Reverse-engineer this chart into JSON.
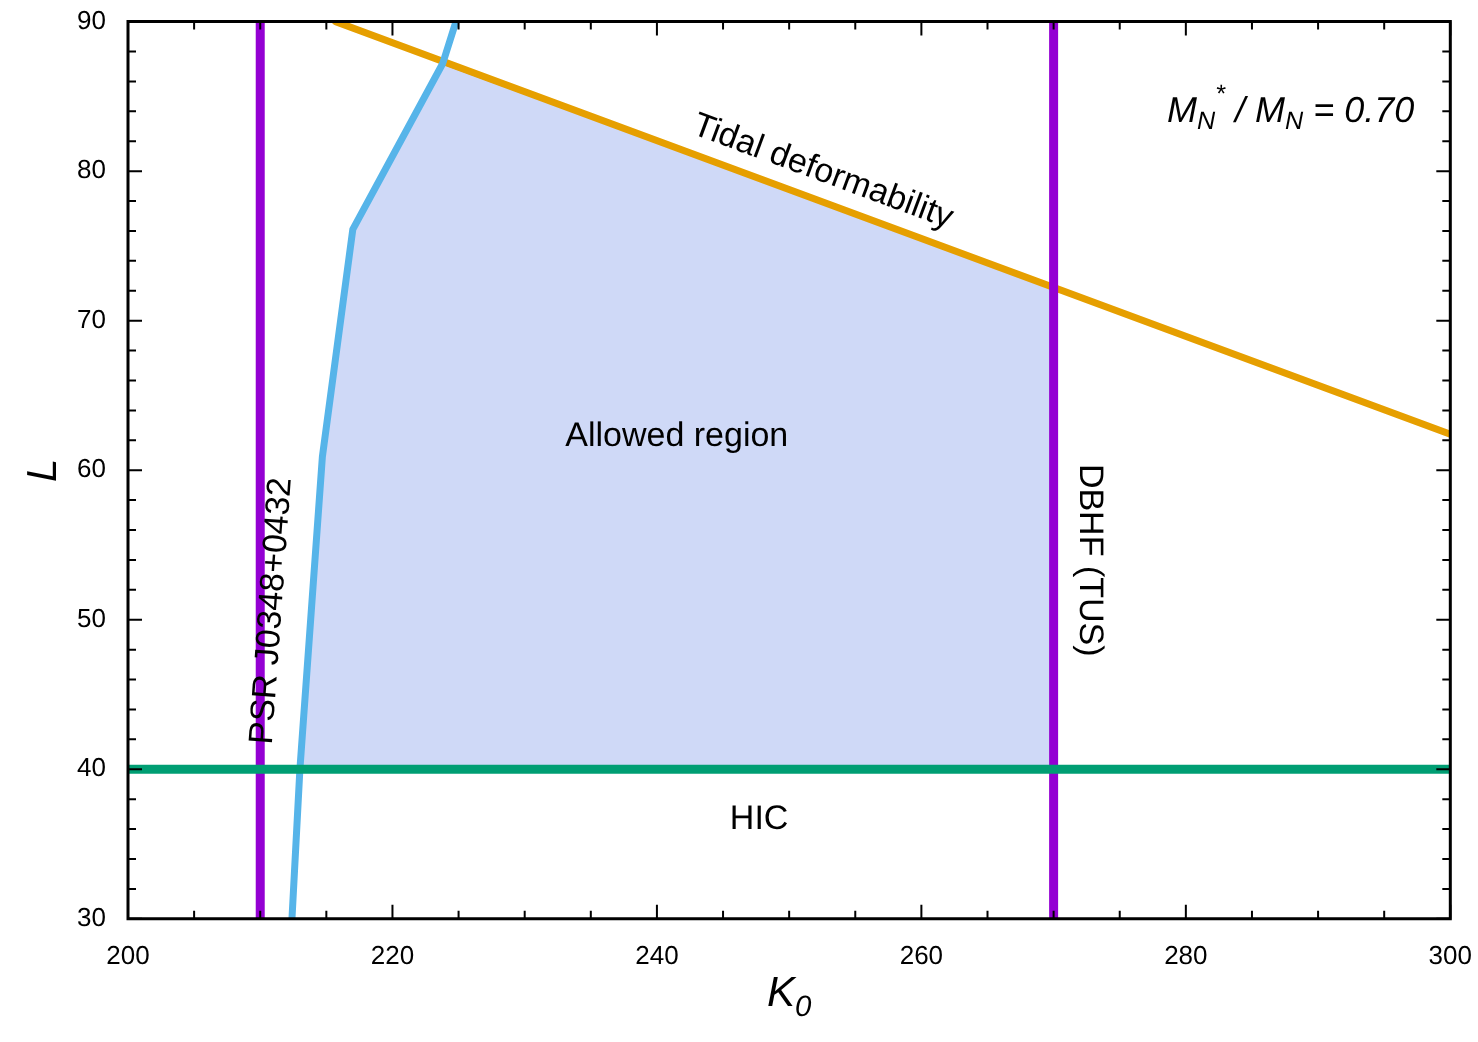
{
  "chart_data": {
    "type": "line",
    "xlabel": "K$_{0}$",
    "ylabel": "L",
    "xlim": [
      200,
      300
    ],
    "ylim": [
      30,
      90
    ],
    "xticks": [
      200,
      {
        "value": 205,
        "label": null
      },
      {
        "value": 210,
        "label": null
      },
      {
        "value": 215,
        "label": null
      },
      220,
      {
        "value": 225,
        "label": null
      },
      {
        "value": 230,
        "label": null
      },
      {
        "value": 235,
        "label": null
      },
      240,
      {
        "value": 245,
        "label": null
      },
      {
        "value": 250,
        "label": null
      },
      {
        "value": 255,
        "label": null
      },
      260,
      {
        "value": 265,
        "label": null
      },
      {
        "value": 270,
        "label": null
      },
      {
        "value": 275,
        "label": null
      },
      280,
      {
        "value": 285,
        "label": null
      },
      {
        "value": 290,
        "label": null
      },
      {
        "value": 295,
        "label": null
      },
      300
    ],
    "yticks": [
      30,
      {
        "value": 32,
        "label": null
      },
      {
        "value": 34,
        "label": null
      },
      {
        "value": 36,
        "label": null
      },
      {
        "value": 38,
        "label": null
      },
      40,
      {
        "value": 42,
        "label": null
      },
      {
        "value": 44,
        "label": null
      },
      {
        "value": 46,
        "label": null
      },
      {
        "value": 48,
        "label": null
      },
      50,
      {
        "value": 52,
        "label": null
      },
      {
        "value": 54,
        "label": null
      },
      {
        "value": 56,
        "label": null
      },
      {
        "value": 58,
        "label": null
      },
      60,
      {
        "value": 62,
        "label": null
      },
      {
        "value": 64,
        "label": null
      },
      {
        "value": 66,
        "label": null
      },
      {
        "value": 68,
        "label": null
      },
      70,
      {
        "value": 72,
        "label": null
      },
      {
        "value": 74,
        "label": null
      },
      {
        "value": 76,
        "label": null
      },
      {
        "value": 78,
        "label": null
      },
      80,
      {
        "value": 82,
        "label": null
      },
      {
        "value": 84,
        "label": null
      },
      {
        "value": 86,
        "label": null
      },
      {
        "value": 88,
        "label": null
      },
      90
    ],
    "series": [
      {
        "type": "area",
        "color": "#4169e1",
        "x": [
          213,
          214.7,
          217,
          223.8,
          270,
          270
        ],
        "values": [
          40,
          60.9,
          76.1,
          87.2,
          72.2,
          40
        ]
      },
      {
        "name": "PSR J0348+0432",
        "color": "#56b4e9",
        "x": [
          212.4,
          213,
          214.7,
          217,
          223.8,
          224.8
        ],
        "values": [
          30,
          40,
          60.9,
          76.1,
          87.2,
          90
        ]
      },
      {
        "name": "Tidal deformability",
        "color": "#e69f00",
        "x": [
          215.7,
          300
        ],
        "values": [
          90,
          62.4
        ]
      }
    ],
    "ref_lines": [
      {
        "axis": "x",
        "value": 210,
        "color": "#9400d3"
      },
      {
        "axis": "x",
        "value": 270,
        "label": "DBHF (TUS)",
        "color": "#9400d3"
      },
      {
        "axis": "y",
        "value": 40,
        "label": "HIC",
        "color": "#009e73"
      }
    ],
    "annotations": [
      "Allowed region",
      "M$_{N}$$^{*}$ / M$_{N}$ = 0.70"
    ],
    "grid": false,
    "legend": false,
    "marker": "none",
    "line_style": "solid"
  }
}
